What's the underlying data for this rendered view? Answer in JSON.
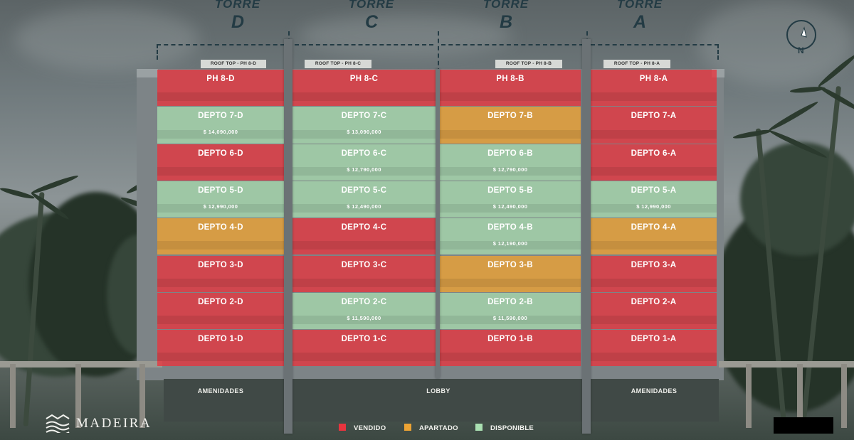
{
  "colors": {
    "vendido": "#e8343e",
    "apartado": "#eca334",
    "disponible": "#aae0b2",
    "heading": "#233b44"
  },
  "towers": [
    {
      "word": "TORRE",
      "letter": "D"
    },
    {
      "word": "TORRE",
      "letter": "C"
    },
    {
      "word": "TORRE",
      "letter": "B"
    },
    {
      "word": "TORRE",
      "letter": "A"
    }
  ],
  "rooftop_labels": [
    "ROOF TOP - PH 8-D",
    "ROOF TOP - PH 8-C",
    "ROOF TOP - PH 8-B",
    "ROOF TOP - PH 8-A"
  ],
  "compass": {
    "letter": "N",
    "icon": "compass-north-icon"
  },
  "floors": [
    [
      {
        "name": "PH 8-D",
        "status": "vendido",
        "price": ""
      },
      {
        "name": "PH 8-C",
        "status": "vendido",
        "price": ""
      },
      {
        "name": "PH 8-B",
        "status": "vendido",
        "price": ""
      },
      {
        "name": "PH 8-A",
        "status": "vendido",
        "price": ""
      }
    ],
    [
      {
        "name": "DEPTO 7-D",
        "status": "disponible",
        "price": "$ 14,090,000"
      },
      {
        "name": "DEPTO 7-C",
        "status": "disponible",
        "price": "$ 13,090,000"
      },
      {
        "name": "DEPTO 7-B",
        "status": "apartado",
        "price": ""
      },
      {
        "name": "DEPTO 7-A",
        "status": "vendido",
        "price": ""
      }
    ],
    [
      {
        "name": "DEPTO 6-D",
        "status": "vendido",
        "price": ""
      },
      {
        "name": "DEPTO 6-C",
        "status": "disponible",
        "price": "$ 12,790,000"
      },
      {
        "name": "DEPTO 6-B",
        "status": "disponible",
        "price": "$ 12,790,000"
      },
      {
        "name": "DEPTO 6-A",
        "status": "vendido",
        "price": ""
      }
    ],
    [
      {
        "name": "DEPTO 5-D",
        "status": "disponible",
        "price": "$ 12,990,000"
      },
      {
        "name": "DEPTO 5-C",
        "status": "disponible",
        "price": "$ 12,490,000"
      },
      {
        "name": "DEPTO 5-B",
        "status": "disponible",
        "price": "$ 12,490,000"
      },
      {
        "name": "DEPTO 5-A",
        "status": "disponible",
        "price": "$ 12,990,000"
      }
    ],
    [
      {
        "name": "DEPTO 4-D",
        "status": "apartado",
        "price": ""
      },
      {
        "name": "DEPTO 4-C",
        "status": "vendido",
        "price": ""
      },
      {
        "name": "DEPTO 4-B",
        "status": "disponible",
        "price": "$ 12,190,000"
      },
      {
        "name": "DEPTO 4-A",
        "status": "apartado",
        "price": ""
      }
    ],
    [
      {
        "name": "DEPTO 3-D",
        "status": "vendido",
        "price": ""
      },
      {
        "name": "DEPTO 3-C",
        "status": "vendido",
        "price": ""
      },
      {
        "name": "DEPTO 3-B",
        "status": "apartado",
        "price": ""
      },
      {
        "name": "DEPTO 3-A",
        "status": "vendido",
        "price": ""
      }
    ],
    [
      {
        "name": "DEPTO 2-D",
        "status": "vendido",
        "price": ""
      },
      {
        "name": "DEPTO 2-C",
        "status": "disponible",
        "price": "$ 11,590,000"
      },
      {
        "name": "DEPTO 2-B",
        "status": "disponible",
        "price": "$ 11,590,000"
      },
      {
        "name": "DEPTO 2-A",
        "status": "vendido",
        "price": ""
      }
    ],
    [
      {
        "name": "DEPTO 1-D",
        "status": "vendido",
        "price": ""
      },
      {
        "name": "DEPTO 1-C",
        "status": "vendido",
        "price": ""
      },
      {
        "name": "DEPTO 1-B",
        "status": "vendido",
        "price": ""
      },
      {
        "name": "DEPTO 1-A",
        "status": "vendido",
        "price": ""
      }
    ]
  ],
  "ground_labels": {
    "left": "AMENIDADES",
    "center": "LOBBY",
    "right": "AMENIDADES"
  },
  "legend": [
    {
      "label": "VENDIDO",
      "status": "vendido"
    },
    {
      "label": "APARTADO",
      "status": "apartado"
    },
    {
      "label": "DISPONIBLE",
      "status": "disponible"
    }
  ],
  "brand": {
    "name": "MADEIRA",
    "icon": "waves-logo-icon"
  }
}
